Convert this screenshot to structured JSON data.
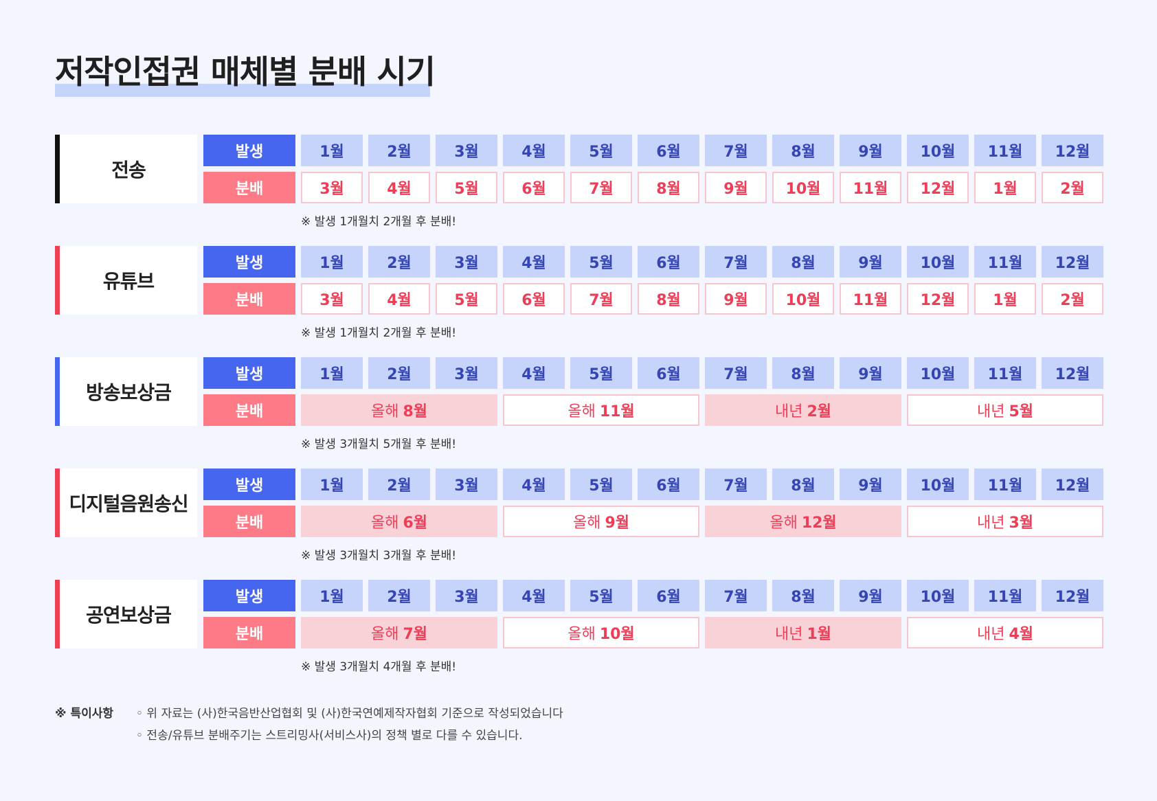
{
  "title": "저작인접권 매체별 분배 시기",
  "colors": {
    "occurrence_bg": "#4766f0",
    "distribution_bg": "#fd7b86",
    "month_cell_bg": "#c6d4fc",
    "month_text": "#3545b4",
    "distribution_text": "#ed3d57",
    "distribution_pink_bg": "#f8d2d7"
  },
  "row_labels": {
    "occurrence": "발생",
    "distribution": "분배"
  },
  "sections": [
    {
      "label": "전송",
      "bar_color": "#111111",
      "occurrence": [
        "1월",
        "2월",
        "3월",
        "4월",
        "5월",
        "6월",
        "7월",
        "8월",
        "9월",
        "10월",
        "11월",
        "12월"
      ],
      "distribution": [
        {
          "prefix": "",
          "value": "3월"
        },
        {
          "prefix": "",
          "value": "4월"
        },
        {
          "prefix": "",
          "value": "5월"
        },
        {
          "prefix": "",
          "value": "6월"
        },
        {
          "prefix": "",
          "value": "7월"
        },
        {
          "prefix": "",
          "value": "8월"
        },
        {
          "prefix": "",
          "value": "9월"
        },
        {
          "prefix": "",
          "value": "10월"
        },
        {
          "prefix": "",
          "value": "11월"
        },
        {
          "prefix": "",
          "value": "12월"
        },
        {
          "prefix": "",
          "value": "1월"
        },
        {
          "prefix": "",
          "value": "2월"
        }
      ],
      "note": "※ 발생 1개월치 2개월 후 분배!"
    },
    {
      "label": "유튜브",
      "bar_color": "#ec4152",
      "occurrence": [
        "1월",
        "2월",
        "3월",
        "4월",
        "5월",
        "6월",
        "7월",
        "8월",
        "9월",
        "10월",
        "11월",
        "12월"
      ],
      "distribution": [
        {
          "prefix": "",
          "value": "3월"
        },
        {
          "prefix": "",
          "value": "4월"
        },
        {
          "prefix": "",
          "value": "5월"
        },
        {
          "prefix": "",
          "value": "6월"
        },
        {
          "prefix": "",
          "value": "7월"
        },
        {
          "prefix": "",
          "value": "8월"
        },
        {
          "prefix": "",
          "value": "9월"
        },
        {
          "prefix": "",
          "value": "10월"
        },
        {
          "prefix": "",
          "value": "11월"
        },
        {
          "prefix": "",
          "value": "12월"
        },
        {
          "prefix": "",
          "value": "1월"
        },
        {
          "prefix": "",
          "value": "2월"
        }
      ],
      "note": "※ 발생 1개월치 2개월 후 분배!"
    },
    {
      "label": "방송보상금",
      "bar_color": "#4766f0",
      "occurrence": [
        "1월",
        "2월",
        "3월",
        "4월",
        "5월",
        "6월",
        "7월",
        "8월",
        "9월",
        "10월",
        "11월",
        "12월"
      ],
      "distribution": [
        {
          "prefix": "올해",
          "value": "8월"
        },
        {
          "prefix": "올해",
          "value": "11월"
        },
        {
          "prefix": "내년",
          "value": "2월"
        },
        {
          "prefix": "내년",
          "value": "5월"
        }
      ],
      "note": "※ 발생 3개월치 5개월 후 분배!"
    },
    {
      "label": "디지털음원송신",
      "bar_color": "#ec4152",
      "occurrence": [
        "1월",
        "2월",
        "3월",
        "4월",
        "5월",
        "6월",
        "7월",
        "8월",
        "9월",
        "10월",
        "11월",
        "12월"
      ],
      "distribution": [
        {
          "prefix": "올해",
          "value": "6월"
        },
        {
          "prefix": "올해",
          "value": "9월"
        },
        {
          "prefix": "올해",
          "value": "12월"
        },
        {
          "prefix": "내년",
          "value": "3월"
        }
      ],
      "note": "※ 발생 3개월치 3개월 후 분배!"
    },
    {
      "label": "공연보상금",
      "bar_color": "#ec4152",
      "occurrence": [
        "1월",
        "2월",
        "3월",
        "4월",
        "5월",
        "6월",
        "7월",
        "8월",
        "9월",
        "10월",
        "11월",
        "12월"
      ],
      "distribution": [
        {
          "prefix": "올해",
          "value": "7월"
        },
        {
          "prefix": "올해",
          "value": "10월"
        },
        {
          "prefix": "내년",
          "value": "1월"
        },
        {
          "prefix": "내년",
          "value": "4월"
        }
      ],
      "note": "※ 발생 3개월치 4개월 후 분배!"
    }
  ],
  "remarks": {
    "title": "※ 특이사항",
    "items": [
      "◦ 위 자료는 (사)한국음반산업협회 및 (사)한국연예제작자협회 기준으로 작성되었습니다",
      "◦ 전송/유튜브 분배주기는 스트리밍사(서비스사)의 정책 별로 다를 수 있습니다."
    ]
  }
}
